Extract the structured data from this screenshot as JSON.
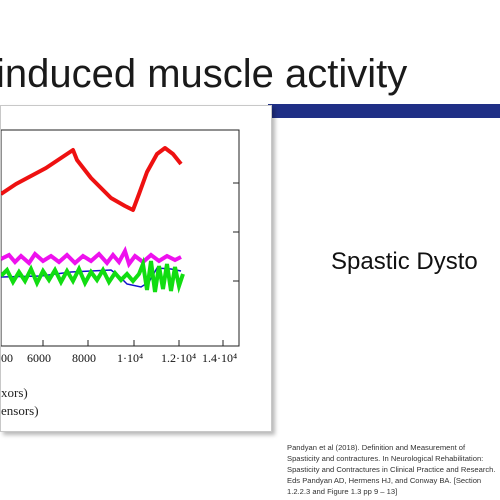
{
  "slide": {
    "title": "induced muscle activity",
    "side_label": "Spastic Dysto",
    "accent_color": "#1f2f86",
    "citation": "Pandyan et al (2018). Definition and Measurement of Spasticity and contractures. In Neurological Rehabilitation: Spasticity and Contractures in Clinical Practice and Research. Eds Pandyan AD, Hermens HJ, and Conway BA. [Section 1.2.2.3 and Figure 1.3 pp 9 – 13]"
  },
  "figure": {
    "x_tick_labels": [
      "00",
      "6000",
      "8000",
      "1·10⁴",
      "1.2·10⁴",
      "1.4·10⁴"
    ],
    "legend": [
      "xors)",
      "ensors)"
    ],
    "colors": {
      "red": "#ee1111",
      "magenta": "#ee11ee",
      "green": "#11dd11",
      "blue": "#1111cc"
    }
  }
}
